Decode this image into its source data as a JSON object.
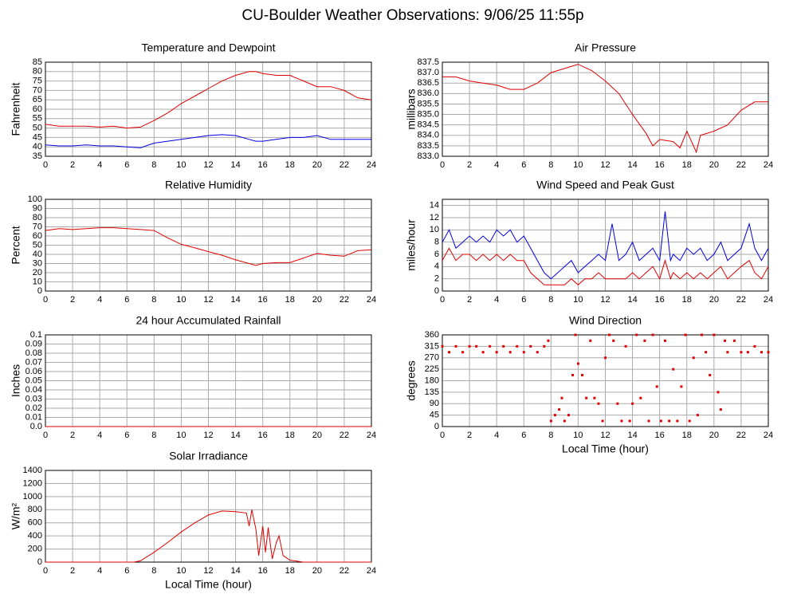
{
  "page_title": "CU-Boulder Weather Observations: 9/06/25 11:55p",
  "chart_data": [
    {
      "type": "line",
      "title": "Temperature and Dewpoint",
      "ylabel": "Fahrenheit",
      "x": [
        0,
        1,
        2,
        3,
        4,
        5,
        6,
        7,
        8,
        9,
        10,
        11,
        12,
        13,
        14,
        15,
        15.5,
        16,
        17,
        18,
        19,
        20,
        21,
        22,
        23,
        24
      ],
      "series": [
        {
          "color": "#e00000",
          "values": [
            52,
            51,
            51,
            51,
            50.5,
            51,
            50,
            50.5,
            54,
            58,
            63,
            67,
            71,
            75,
            78,
            80,
            80,
            79,
            78,
            78,
            75,
            72,
            72,
            70,
            66,
            65
          ]
        },
        {
          "color": "#0000e0",
          "values": [
            41,
            40.5,
            40.5,
            41,
            40.5,
            40.5,
            40,
            39.5,
            42,
            43,
            44,
            45,
            46,
            46.5,
            46,
            44,
            43,
            43,
            44,
            45,
            45,
            46,
            44,
            44,
            44,
            44
          ]
        }
      ],
      "xlim": [
        0,
        24
      ],
      "xticks": [
        0,
        2,
        4,
        6,
        8,
        10,
        12,
        14,
        16,
        18,
        20,
        22,
        24
      ],
      "ylim": [
        35,
        85
      ],
      "yticks": [
        35,
        40,
        45,
        50,
        55,
        60,
        65,
        70,
        75,
        80,
        85
      ],
      "grid": true
    },
    {
      "type": "line",
      "title": "Air Pressure",
      "ylabel": "millibars",
      "x": [
        0,
        1,
        2,
        3,
        4,
        5,
        6,
        7,
        8,
        9,
        10,
        11,
        12,
        13,
        14,
        15,
        15.5,
        16,
        17,
        17.5,
        18,
        18.7,
        19,
        20,
        21,
        22,
        23,
        24
      ],
      "series": [
        {
          "color": "#e00000",
          "values": [
            836.8,
            836.8,
            836.6,
            836.5,
            836.4,
            836.2,
            836.2,
            836.5,
            837.0,
            837.2,
            837.4,
            837.1,
            836.6,
            836.0,
            835.0,
            834.1,
            833.5,
            833.8,
            833.7,
            833.4,
            834.2,
            833.2,
            834.0,
            834.2,
            834.5,
            835.2,
            835.6,
            835.6
          ]
        }
      ],
      "xlim": [
        0,
        24
      ],
      "xticks": [
        0,
        2,
        4,
        6,
        8,
        10,
        12,
        14,
        16,
        18,
        20,
        22,
        24
      ],
      "ylim": [
        833,
        837.5
      ],
      "yticks": [
        {
          "value": 833,
          "label": "833.0"
        },
        833.5,
        {
          "value": 834,
          "label": "834.0"
        },
        834.5,
        {
          "value": 835,
          "label": "835.0"
        },
        835.5,
        {
          "value": 836,
          "label": "836.0"
        },
        836.5,
        {
          "value": 837,
          "label": "837.0"
        },
        837.5
      ],
      "grid": true
    },
    {
      "type": "line",
      "title": "Relative Humidity",
      "ylabel": "Percent",
      "x": [
        0,
        1,
        2,
        3,
        4,
        5,
        6,
        7,
        8,
        9,
        10,
        11,
        12,
        13,
        14,
        15,
        15.5,
        16,
        17,
        18,
        19,
        20,
        21,
        22,
        23,
        24
      ],
      "series": [
        {
          "color": "#e00000",
          "values": [
            66,
            68,
            67,
            68,
            69,
            69,
            68,
            67,
            66,
            58,
            51,
            47,
            43,
            39,
            34,
            30,
            28,
            30,
            31,
            31,
            36,
            41,
            39,
            38,
            44,
            45
          ]
        }
      ],
      "xlim": [
        0,
        24
      ],
      "xticks": [
        0,
        2,
        4,
        6,
        8,
        10,
        12,
        14,
        16,
        18,
        20,
        22,
        24
      ],
      "ylim": [
        0,
        100
      ],
      "yticks": [
        0,
        10,
        20,
        30,
        40,
        50,
        60,
        70,
        80,
        90,
        100
      ],
      "grid": true
    },
    {
      "type": "line",
      "title": "Wind Speed and Peak Gust",
      "ylabel": "miles/hour",
      "x": [
        0,
        0.5,
        1,
        1.5,
        2,
        2.5,
        3,
        3.5,
        4,
        4.5,
        5,
        5.5,
        6,
        6.5,
        7,
        7.5,
        8,
        8.5,
        9,
        9.5,
        10,
        10.5,
        11,
        11.5,
        12,
        12.5,
        13,
        13.5,
        14,
        14.5,
        15,
        15.5,
        16,
        16.4,
        16.8,
        17,
        17.5,
        18,
        18.5,
        19,
        19.5,
        20,
        20.5,
        21,
        21.5,
        22,
        22.6,
        23,
        23.5,
        24
      ],
      "series": [
        {
          "color": "#0000e0",
          "values": [
            8,
            10,
            7,
            8,
            9,
            8,
            9,
            8,
            10,
            9,
            10,
            8,
            9,
            7,
            5,
            3,
            2,
            3,
            4,
            5,
            3,
            4,
            5,
            6,
            5,
            11,
            5,
            6,
            8,
            5,
            6,
            7,
            5,
            13,
            5,
            6,
            5,
            7,
            6,
            7,
            5,
            6,
            8,
            5,
            6,
            7,
            11,
            7,
            5,
            7
          ]
        },
        {
          "color": "#e00000",
          "values": [
            5,
            7,
            5,
            6,
            6,
            5,
            6,
            5,
            6,
            5,
            6,
            5,
            5,
            3,
            2,
            1,
            1,
            1,
            1,
            2,
            1,
            2,
            2,
            3,
            2,
            2,
            2,
            2,
            3,
            2,
            3,
            4,
            2,
            5,
            2,
            3,
            2,
            3,
            2,
            3,
            2,
            3,
            4,
            2,
            3,
            4,
            5,
            3,
            2,
            4
          ]
        }
      ],
      "xlim": [
        0,
        24
      ],
      "xticks": [
        0,
        2,
        4,
        6,
        8,
        10,
        12,
        14,
        16,
        18,
        20,
        22,
        24
      ],
      "ylim": [
        0,
        15
      ],
      "yticks": [
        0,
        2,
        4,
        6,
        8,
        10,
        12,
        14
      ],
      "grid": true
    },
    {
      "type": "line",
      "title": "24 hour Accumulated Rainfall",
      "ylabel": "Inches",
      "x": [
        0,
        24
      ],
      "series": [
        {
          "color": "#e00000",
          "values": [
            0,
            0
          ]
        }
      ],
      "xlim": [
        0,
        24
      ],
      "xticks": [
        0,
        2,
        4,
        6,
        8,
        10,
        12,
        14,
        16,
        18,
        20,
        22,
        24
      ],
      "ylim": [
        0,
        0.1
      ],
      "yticks": [
        {
          "value": 0,
          "label": "0.0"
        },
        0.01,
        0.02,
        0.03,
        0.04,
        0.05,
        0.06,
        0.07,
        0.08,
        0.09,
        0.1
      ],
      "grid": true
    },
    {
      "type": "scatter",
      "title": "Wind Direction",
      "ylabel": "degrees",
      "xlabel": "Local Time (hour)",
      "x": [
        0,
        0.5,
        1,
        1.5,
        2,
        2.5,
        3,
        3.5,
        4,
        4.5,
        5,
        5.5,
        6,
        6.5,
        7,
        7.5,
        7.8,
        8,
        8.3,
        8.6,
        8.8,
        9,
        9.3,
        9.6,
        9.8,
        10,
        10.3,
        10.6,
        10.9,
        11.2,
        11.5,
        11.8,
        12,
        12.3,
        12.6,
        12.9,
        13.2,
        13.5,
        13.8,
        14,
        14.3,
        14.6,
        14.9,
        15.2,
        15.5,
        15.8,
        16.1,
        16.4,
        16.7,
        17,
        17.3,
        17.6,
        17.9,
        18.2,
        18.5,
        18.8,
        19.1,
        19.4,
        19.7,
        20,
        20.3,
        20.5,
        20.8,
        21,
        21.5,
        22,
        22.5,
        23,
        23.5,
        24
      ],
      "series": [
        {
          "color": "#e00000",
          "values": [
            315,
            292,
            315,
            292,
            315,
            315,
            292,
            315,
            292,
            315,
            292,
            315,
            292,
            315,
            292,
            315,
            337,
            22,
            45,
            67,
            112,
            22,
            45,
            202,
            360,
            247,
            202,
            112,
            337,
            112,
            90,
            22,
            270,
            360,
            337,
            90,
            22,
            315,
            22,
            90,
            360,
            112,
            337,
            22,
            360,
            157,
            22,
            337,
            22,
            225,
            22,
            157,
            360,
            22,
            270,
            45,
            360,
            292,
            202,
            360,
            135,
            67,
            337,
            292,
            337,
            292,
            292,
            315,
            292,
            292
          ]
        }
      ],
      "xlim": [
        0,
        24
      ],
      "xticks": [
        0,
        2,
        4,
        6,
        8,
        10,
        12,
        14,
        16,
        18,
        20,
        22,
        24
      ],
      "ylim": [
        0,
        360
      ],
      "yticks": [
        0,
        45,
        90,
        135,
        180,
        225,
        270,
        315,
        360
      ],
      "grid": true
    },
    {
      "type": "line",
      "title": "Solar Irradiance",
      "ylabel": "W/m²",
      "xlabel": "Local Time (hour)",
      "x": [
        0,
        6.5,
        7,
        8,
        9,
        10,
        11,
        12,
        13,
        14,
        14.8,
        15,
        15.2,
        15.5,
        15.7,
        16,
        16.2,
        16.4,
        16.7,
        17,
        17.2,
        17.5,
        18,
        19,
        24
      ],
      "series": [
        {
          "color": "#e00000",
          "values": [
            0,
            0,
            20,
            150,
            300,
            460,
            600,
            720,
            780,
            770,
            750,
            550,
            800,
            500,
            100,
            550,
            150,
            530,
            50,
            300,
            400,
            100,
            30,
            0,
            0
          ]
        }
      ],
      "xlim": [
        0,
        24
      ],
      "xticks": [
        0,
        2,
        4,
        6,
        8,
        10,
        12,
        14,
        16,
        18,
        20,
        22,
        24
      ],
      "ylim": [
        0,
        1400
      ],
      "yticks": [
        0,
        200,
        400,
        600,
        800,
        1000,
        1200,
        1400
      ],
      "grid": true
    }
  ]
}
